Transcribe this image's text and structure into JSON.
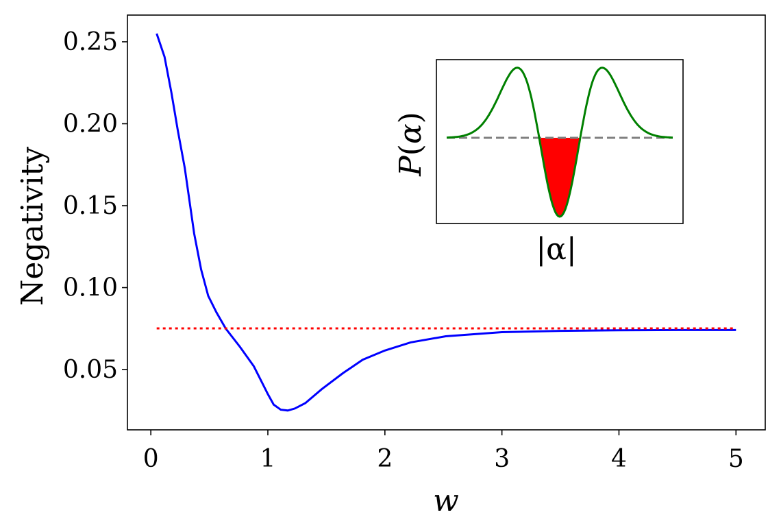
{
  "chart_data": [
    {
      "type": "line",
      "title": "",
      "xlabel": "w",
      "ylabel": "Negativity",
      "xlim": [
        -0.2,
        5.25
      ],
      "ylim": [
        0.0132,
        0.2663
      ],
      "xticks": [
        0,
        1,
        2,
        3,
        4,
        5
      ],
      "xtick_labels": [
        "0",
        "1",
        "2",
        "3",
        "4",
        "5"
      ],
      "yticks": [
        0.05,
        0.1,
        0.15,
        0.2,
        0.25
      ],
      "ytick_labels": [
        "0.05",
        "0.10",
        "0.15",
        "0.20",
        "0.25"
      ],
      "grid": false,
      "series": [
        {
          "name": "negativity",
          "color": "#0000ff",
          "style": "solid",
          "x": [
            0.05,
            0.117,
            0.176,
            0.23,
            0.29,
            0.37,
            0.43,
            0.49,
            0.56,
            0.64,
            0.76,
            0.88,
            1.0,
            1.05,
            1.11,
            1.17,
            1.23,
            1.32,
            1.46,
            1.64,
            1.81,
            2.0,
            2.22,
            2.52,
            3.0,
            3.5,
            4.0,
            4.5,
            5.0
          ],
          "y": [
            0.255,
            0.2408,
            0.219,
            0.196,
            0.173,
            0.133,
            0.111,
            0.095,
            0.085,
            0.075,
            0.064,
            0.052,
            0.035,
            0.0286,
            0.0255,
            0.025,
            0.0262,
            0.0295,
            0.038,
            0.0477,
            0.056,
            0.0616,
            0.0666,
            0.0703,
            0.0728,
            0.0736,
            0.074,
            0.0741,
            0.0741
          ]
        },
        {
          "name": "reference",
          "color": "#ff0000",
          "style": "dotted",
          "x": [
            0.05,
            5.0
          ],
          "y": [
            0.0751,
            0.0751
          ]
        }
      ]
    },
    {
      "type": "line",
      "title": "inset",
      "xlabel": "|α|",
      "ylabel_prefix": "P(",
      "ylabel_var": "α",
      "ylabel_suffix": ")",
      "xlim": [
        -4.3,
        4.3
      ],
      "ylim": [
        -0.66,
        0.6
      ],
      "function": "(u^2 - b) * exp(-u^2/2)",
      "b": 0.61,
      "samples": 161,
      "curve_color": "#008000",
      "baseline_color": "#808080",
      "fill_color": "#ff0000",
      "baseline_value": 0
    }
  ]
}
